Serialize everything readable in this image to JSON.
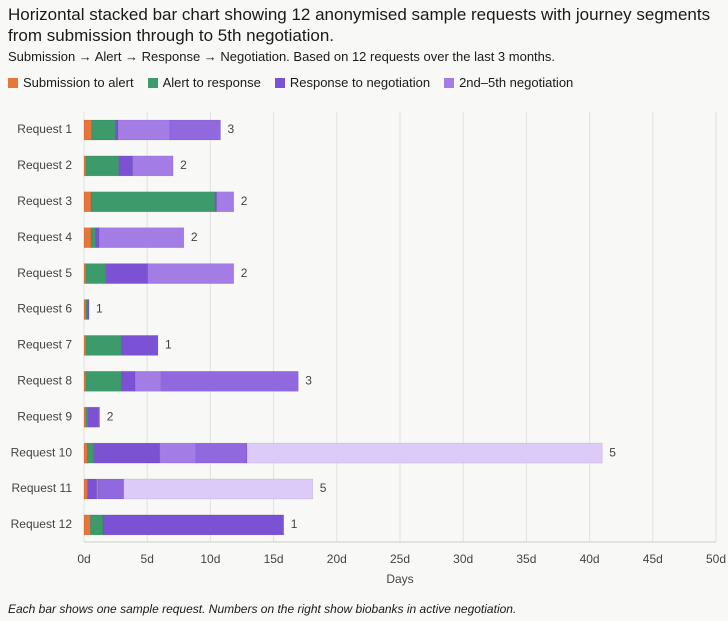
{
  "chart_data": {
    "type": "bar",
    "orientation": "horizontal",
    "stacked": true,
    "title": "Horizontal stacked bar chart showing 12 anonymised sample requests with journey segments from submission through to 5th negotiation.",
    "subtitle": "Submission → Alert → Response → Negotiation. Based on 12 requests over the last 3 months.",
    "footnote": "Each bar shows one sample request. Numbers on the right show biobanks in active negotiation.",
    "x_label": "Days",
    "categories": [
      "Request 1",
      "Request 2",
      "Request 3",
      "Request 4",
      "Request 5",
      "Request 6",
      "Request 7",
      "Request 8",
      "Request 9",
      "Request 10",
      "Request 11",
      "Request 12"
    ],
    "series": [
      {
        "name": "Submission to alert",
        "color": "#e8763a",
        "values": [
          0.6,
          0.15,
          0.55,
          0.55,
          0.15,
          0.15,
          0.15,
          0.15,
          0.15,
          0.25,
          0.25,
          0.5
        ]
      },
      {
        "name": "Alert to response",
        "color": "#3d9a6a",
        "values": [
          1.9,
          2.6,
          9.8,
          0.4,
          1.6,
          0.1,
          2.8,
          2.8,
          0.15,
          0.55,
          0.05,
          1.0
        ]
      },
      {
        "name": "Response to negotiation",
        "color": "#7b52d4",
        "values": [
          0.2,
          1.1,
          0.15,
          0.25,
          3.3,
          0.15,
          2.9,
          1.1,
          0.85,
          5.2,
          0.7,
          14.3
        ]
      },
      {
        "name": "2nd–5th negotiation",
        "color": "#a47ce6",
        "colors": [
          "#a47ce6",
          "#9169de",
          "#dccbf8"
        ],
        "values": [
          [
            4.1,
            4.0
          ],
          [
            3.2
          ],
          [
            1.35
          ],
          [
            6.7
          ],
          [
            6.8
          ],
          [],
          [],
          [
            2.05,
            10.85
          ],
          [
            0.1
          ],
          [
            2.85,
            4.05,
            28.1
          ],
          [
            0.15,
            2.0,
            14.95
          ],
          []
        ]
      }
    ],
    "end_labels": [
      3,
      2,
      2,
      2,
      2,
      1,
      1,
      3,
      2,
      5,
      5,
      1
    ],
    "xlim": [
      0,
      50
    ],
    "xticks": [
      {
        "value": 0,
        "label": "0d"
      },
      {
        "value": 5,
        "label": "5d"
      },
      {
        "value": 10,
        "label": "10d"
      },
      {
        "value": 15,
        "label": "15d"
      },
      {
        "value": 20,
        "label": "20d"
      },
      {
        "value": 25,
        "label": "25d"
      },
      {
        "value": 30,
        "label": "30d"
      },
      {
        "value": 35,
        "label": "35d"
      },
      {
        "value": 40,
        "label": "40d"
      },
      {
        "value": 45,
        "label": "45d"
      },
      {
        "value": 50,
        "label": "50d"
      }
    ],
    "grid": true
  }
}
